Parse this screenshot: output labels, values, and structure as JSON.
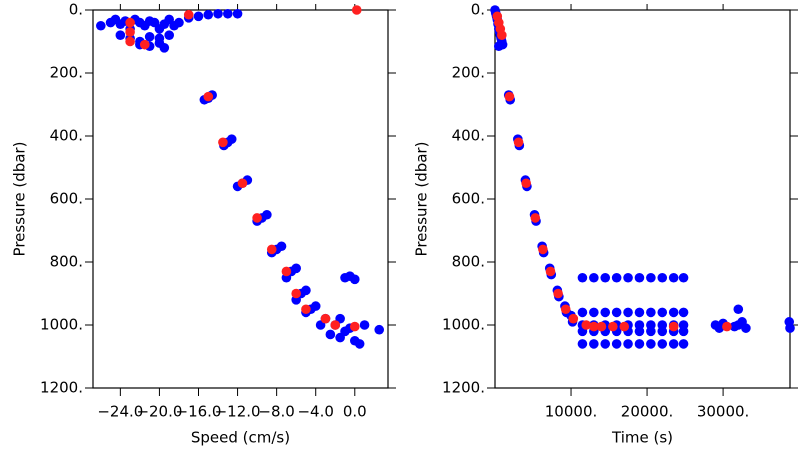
{
  "chart_data": [
    {
      "type": "scatter",
      "xlabel": "Speed (cm/s)",
      "ylabel": "Pressure (dbar)",
      "xlim": [
        -26.8,
        3.4
      ],
      "ylim": [
        0,
        1200
      ],
      "y_inverted": true,
      "xticks": [
        {
          "value": -24,
          "label": "−24.0"
        },
        {
          "value": -20,
          "label": "−20.0"
        },
        {
          "value": -16,
          "label": "−16.0"
        },
        {
          "value": -12,
          "label": "−12.0"
        },
        {
          "value": -8,
          "label": "−8.0"
        },
        {
          "value": -4,
          "label": "−4.0"
        },
        {
          "value": 0,
          "label": "0.0"
        }
      ],
      "yticks": [
        {
          "value": 0,
          "label": "0."
        },
        {
          "value": 200,
          "label": "200."
        },
        {
          "value": 400,
          "label": "400."
        },
        {
          "value": 600,
          "label": "600."
        },
        {
          "value": 800,
          "label": "800."
        },
        {
          "value": 1000,
          "label": "1000."
        },
        {
          "value": 1200,
          "label": "1200."
        }
      ],
      "series": [
        {
          "color": "#0000ff",
          "x": [
            -26,
            -25,
            -24.5,
            -24,
            -23.5,
            -23,
            -22.5,
            -22,
            -21.5,
            -21,
            -20.5,
            -20,
            -19.5,
            -19,
            -18.5,
            -18,
            -17,
            -16,
            -15,
            -14,
            -13,
            -12,
            -24,
            -23,
            -22,
            -21,
            -20,
            -19,
            -22,
            -21,
            -20,
            -19.5,
            -15,
            -14.6,
            -15.4,
            -13,
            -12.6,
            -13.4,
            -11.5,
            -11,
            -12,
            -9.5,
            -9,
            -10,
            -8,
            -7.5,
            -8.5,
            -6.5,
            -7,
            -6,
            -5.5,
            -6,
            -5,
            -4.5,
            -5,
            -4,
            -3,
            -2,
            -1,
            0,
            1,
            -1.5,
            0.5,
            -0.5,
            2.5,
            -2.5,
            -1,
            0,
            -0.5,
            -3.5,
            -1.5
          ],
          "values": [
            50,
            40,
            30,
            45,
            35,
            60,
            30,
            40,
            50,
            35,
            40,
            60,
            45,
            30,
            50,
            40,
            25,
            20,
            15,
            12,
            12,
            12,
            80,
            90,
            100,
            85,
            90,
            80,
            110,
            115,
            105,
            120,
            280,
            270,
            285,
            420,
            410,
            430,
            550,
            540,
            560,
            660,
            650,
            670,
            760,
            750,
            770,
            830,
            850,
            820,
            900,
            920,
            890,
            950,
            960,
            940,
            980,
            1000,
            1020,
            1050,
            1000,
            1040,
            1060,
            1010,
            1015,
            1030,
            850,
            855,
            845,
            1000,
            980
          ]
        },
        {
          "color": "#ff2020",
          "x": [
            -23,
            -23,
            -23,
            -21.5,
            -17,
            -15,
            -13.5,
            -11.5,
            -10,
            -8.5,
            -7,
            -6,
            -5,
            -3,
            -2,
            0,
            0.2
          ],
          "values": [
            40,
            70,
            100,
            110,
            15,
            275,
            420,
            550,
            660,
            760,
            830,
            900,
            950,
            980,
            1000,
            1005,
            0
          ]
        }
      ]
    },
    {
      "type": "scatter",
      "xlabel": "Time (s)",
      "ylabel": "Pressure (dbar)",
      "xlim": [
        0,
        38800
      ],
      "ylim": [
        0,
        1200
      ],
      "y_inverted": true,
      "xticks": [
        {
          "value": 10000,
          "label": "10000."
        },
        {
          "value": 20000,
          "label": "20000."
        },
        {
          "value": 30000,
          "label": "30000."
        }
      ],
      "yticks": [
        {
          "value": 0,
          "label": "0."
        },
        {
          "value": 200,
          "label": "200."
        },
        {
          "value": 400,
          "label": "400."
        },
        {
          "value": 600,
          "label": "600."
        },
        {
          "value": 800,
          "label": "800."
        },
        {
          "value": 1000,
          "label": "1000."
        },
        {
          "value": 1200,
          "label": "1200."
        }
      ],
      "series": [
        {
          "color": "#0000ff",
          "x": [
            0,
            100,
            200,
            300,
            400,
            500,
            600,
            700,
            800,
            900,
            1000,
            500,
            1800,
            2000,
            3000,
            3200,
            4000,
            4200,
            5200,
            5400,
            6200,
            6400,
            7200,
            7400,
            8200,
            8400,
            9200,
            9400,
            10000,
            10200,
            11500,
            13000,
            14500,
            16000,
            17500,
            19000,
            20500,
            22000,
            23500,
            24800,
            11500,
            13000,
            14500,
            16000,
            17500,
            19000,
            20500,
            22000,
            23500,
            24800,
            11500,
            13000,
            14500,
            16000,
            17500,
            19000,
            20500,
            22000,
            23500,
            24800,
            11500,
            13000,
            14500,
            16000,
            17500,
            19000,
            20500,
            22000,
            23500,
            24800,
            11500,
            13000,
            14500,
            16000,
            17500,
            19000,
            20500,
            22000,
            23500,
            24800,
            29000,
            29500,
            30000,
            31500,
            32000,
            32500,
            33000,
            32000,
            38700,
            38800
          ],
          "values": [
            0,
            10,
            20,
            30,
            45,
            60,
            70,
            80,
            90,
            100,
            110,
            115,
            270,
            285,
            410,
            430,
            540,
            560,
            650,
            670,
            750,
            770,
            820,
            840,
            890,
            910,
            940,
            960,
            970,
            990,
            850,
            850,
            850,
            850,
            850,
            850,
            850,
            850,
            850,
            850,
            960,
            960,
            960,
            960,
            960,
            960,
            960,
            960,
            960,
            960,
            1000,
            1000,
            1000,
            1000,
            1000,
            1000,
            1000,
            1000,
            1000,
            1000,
            1020,
            1020,
            1020,
            1020,
            1020,
            1020,
            1020,
            1020,
            1020,
            1020,
            1060,
            1060,
            1060,
            1060,
            1060,
            1060,
            1060,
            1060,
            1060,
            1060,
            1000,
            1010,
            995,
            1005,
            1000,
            990,
            1010,
            950,
            990,
            1010
          ]
        },
        {
          "color": "#ff2020",
          "x": [
            300,
            500,
            700,
            900,
            1900,
            3100,
            4100,
            5300,
            6300,
            7300,
            8300,
            9300,
            10300,
            12000,
            13000,
            14000,
            15500,
            17000,
            23500,
            30500
          ],
          "values": [
            20,
            40,
            60,
            80,
            275,
            420,
            550,
            660,
            760,
            830,
            900,
            950,
            980,
            1000,
            1005,
            1005,
            1005,
            1005,
            1005,
            1005
          ]
        }
      ]
    }
  ]
}
